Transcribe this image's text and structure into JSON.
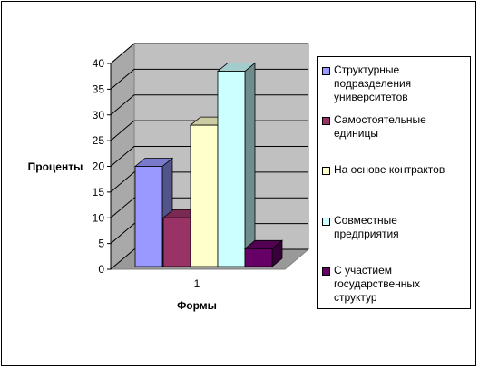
{
  "chart_data": {
    "type": "bar",
    "ylabel": "Проценты",
    "xlabel": "Формы",
    "categories": [
      "1"
    ],
    "ylim": [
      0,
      40
    ],
    "yticks": [
      0,
      5,
      10,
      15,
      20,
      25,
      30,
      35,
      40
    ],
    "grid": true,
    "legend_position": "right",
    "series": [
      {
        "name": "Структурные подразделения университетов",
        "values": [
          20
        ],
        "color": "#9999ff"
      },
      {
        "name": "Самостоятельные единицы",
        "values": [
          10
        ],
        "color": "#993366"
      },
      {
        "name": "На основе контрактов",
        "values": [
          28
        ],
        "color": "#ffffcc"
      },
      {
        "name": "Совместные предприятия",
        "values": [
          38.5
        ],
        "color": "#ccffff"
      },
      {
        "name": "С участием государственных структур",
        "values": [
          4
        ],
        "color": "#660066"
      }
    ]
  },
  "legend_lines": [
    [
      "Структурные",
      "подразделения",
      "университетов"
    ],
    [
      "Самостоятельные",
      "единицы"
    ],
    [
      "На основе контрактов"
    ],
    [
      "Совместные",
      "предприятия"
    ],
    [
      "С участием",
      "государственных",
      "структур"
    ]
  ]
}
